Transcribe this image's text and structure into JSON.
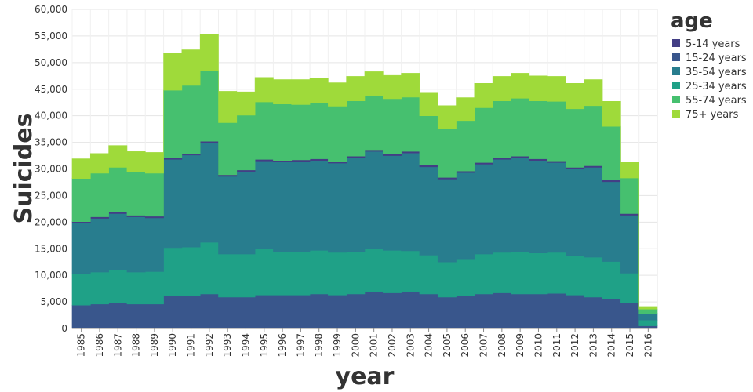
{
  "chart_data": {
    "type": "area",
    "stacked": true,
    "interpolation": "step",
    "x_label": "year",
    "y_label": "Suicides",
    "legend_title": "age",
    "legend_position": "right",
    "grid": true,
    "ylim": [
      0,
      60000
    ],
    "y_ticks": [
      "0",
      "5,000",
      "10,000",
      "15,000",
      "20,000",
      "25,000",
      "30,000",
      "35,000",
      "40,000",
      "45,000",
      "50,000",
      "55,000",
      "60,000"
    ],
    "y_tick_values": [
      0,
      5000,
      10000,
      15000,
      20000,
      25000,
      30000,
      35000,
      40000,
      45000,
      50000,
      55000,
      60000
    ],
    "years": [
      "1985",
      "1986",
      "1987",
      "1988",
      "1989",
      "1990",
      "1991",
      "1992",
      "1993",
      "1994",
      "1995",
      "1996",
      "1997",
      "1998",
      "1999",
      "2000",
      "2001",
      "2002",
      "2003",
      "2004",
      "2005",
      "2006",
      "2007",
      "2008",
      "2009",
      "2010",
      "2011",
      "2012",
      "2013",
      "2014",
      "2015",
      "2016"
    ],
    "legend_order": [
      "5-14 years",
      "15-24 years",
      "35-54 years",
      "25-34 years",
      "55-74 years",
      "75+ years"
    ],
    "series": [
      {
        "name": "15-24 years",
        "color": "#39568c",
        "values": [
          4400,
          4600,
          4800,
          4600,
          4600,
          6200,
          6200,
          6500,
          5900,
          5900,
          6300,
          6300,
          6300,
          6500,
          6300,
          6500,
          6900,
          6700,
          6900,
          6500,
          5900,
          6200,
          6500,
          6700,
          6500,
          6500,
          6600,
          6300,
          5900,
          5600,
          4900,
          500
        ]
      },
      {
        "name": "25-34 years",
        "color": "#1fa187",
        "values": [
          5900,
          6000,
          6200,
          6000,
          6100,
          9000,
          9100,
          9700,
          8100,
          8100,
          8700,
          8100,
          8100,
          8200,
          8000,
          8000,
          8100,
          8000,
          7700,
          7300,
          6600,
          6900,
          7500,
          7600,
          7900,
          7700,
          7700,
          7400,
          7500,
          7000,
          5500,
          1100
        ]
      },
      {
        "name": "35-54 years",
        "color": "#287d8e",
        "values": [
          9500,
          10100,
          10600,
          10400,
          10100,
          16600,
          17300,
          18700,
          14600,
          15500,
          16500,
          16900,
          17000,
          16900,
          16800,
          17600,
          18300,
          17800,
          18400,
          16600,
          15600,
          16200,
          16900,
          17500,
          17700,
          17400,
          16900,
          16300,
          16900,
          15000,
          10900,
          1200
        ]
      },
      {
        "name": "5-14 years",
        "color": "#433e85",
        "values": [
          300,
          300,
          300,
          300,
          300,
          300,
          300,
          300,
          300,
          300,
          300,
          300,
          300,
          300,
          300,
          300,
          300,
          300,
          300,
          300,
          300,
          300,
          300,
          300,
          300,
          300,
          300,
          300,
          300,
          300,
          300,
          30
        ]
      },
      {
        "name": "55-74 years",
        "color": "#46c06f",
        "values": [
          8100,
          8200,
          8400,
          8100,
          8100,
          12700,
          12800,
          13300,
          9800,
          10300,
          10800,
          10600,
          10400,
          10500,
          10400,
          10400,
          10200,
          10400,
          10200,
          9300,
          9200,
          9500,
          10300,
          10700,
          10900,
          10900,
          11200,
          11000,
          11300,
          10100,
          6700,
          800
        ]
      },
      {
        "name": "75+ years",
        "color": "#9fda3a",
        "values": [
          3700,
          3700,
          4100,
          3900,
          3900,
          7000,
          6700,
          6800,
          5900,
          4400,
          4600,
          4600,
          4700,
          4700,
          4400,
          4600,
          4500,
          4400,
          4500,
          4400,
          4300,
          4300,
          4600,
          4600,
          4700,
          4700,
          4700,
          4800,
          4900,
          4700,
          2900,
          500
        ]
      }
    ]
  }
}
